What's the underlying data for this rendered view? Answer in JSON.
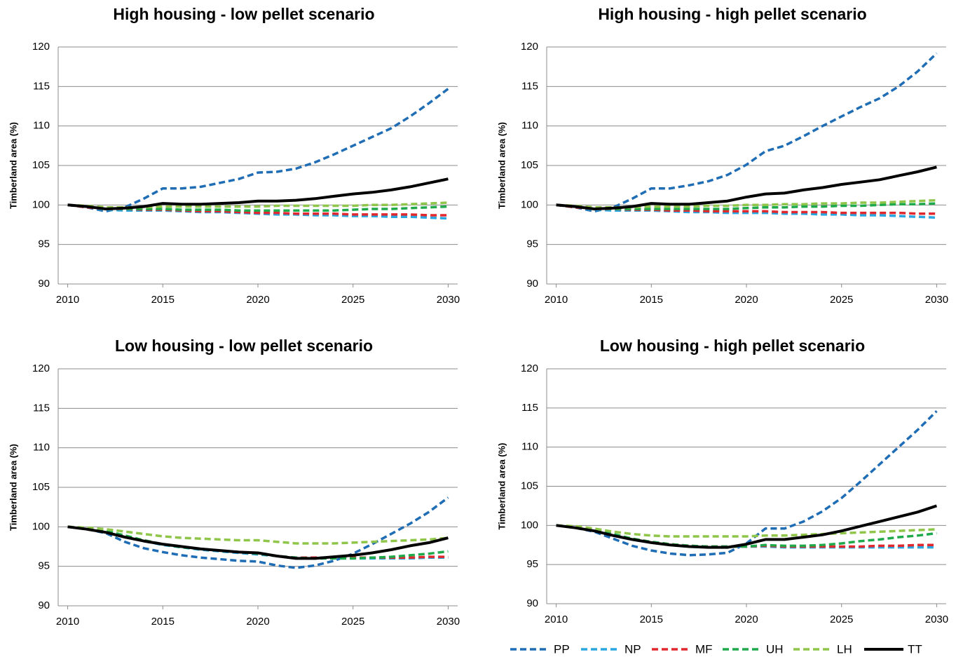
{
  "chart_data": [
    {
      "type": "line",
      "title": "High housing - low pellet scenario",
      "y_label": "Timberland area (%)",
      "x": [
        2010,
        2011,
        2012,
        2013,
        2014,
        2015,
        2016,
        2017,
        2018,
        2019,
        2020,
        2021,
        2022,
        2023,
        2024,
        2025,
        2026,
        2027,
        2028,
        2029,
        2030
      ],
      "xlim": [
        2009.5,
        2030.5
      ],
      "xticks": [
        2010,
        2015,
        2020,
        2025,
        2030
      ],
      "ylim": [
        90,
        120
      ],
      "yticks": [
        90,
        95,
        100,
        105,
        110,
        115,
        120
      ],
      "grid": true,
      "series": [
        {
          "name": "PP",
          "color": "#1f6db5",
          "dashed": true,
          "values": [
            100,
            99.7,
            99.2,
            99.7,
            100.8,
            102.1,
            102.1,
            102.3,
            102.8,
            103.3,
            104.1,
            104.2,
            104.6,
            105.4,
            106.4,
            107.5,
            108.6,
            109.7,
            111.2,
            112.9,
            114.7
          ]
        },
        {
          "name": "NP",
          "color": "#2aa7e0",
          "dashed": true,
          "values": [
            100,
            99.7,
            99.4,
            99.3,
            99.3,
            99.3,
            99.2,
            99.1,
            99.1,
            99.0,
            98.9,
            98.8,
            98.8,
            98.7,
            98.7,
            98.6,
            98.6,
            98.5,
            98.5,
            98.4,
            98.3
          ]
        },
        {
          "name": "MF",
          "color": "#e0282e",
          "dashed": true,
          "values": [
            100,
            99.7,
            99.5,
            99.5,
            99.4,
            99.4,
            99.3,
            99.2,
            99.2,
            99.1,
            99.0,
            99.0,
            98.9,
            98.9,
            98.9,
            98.8,
            98.8,
            98.8,
            98.8,
            98.7,
            98.7
          ]
        },
        {
          "name": "UH",
          "color": "#1ea94b",
          "dashed": true,
          "values": [
            100,
            99.8,
            99.6,
            99.5,
            99.5,
            99.5,
            99.4,
            99.4,
            99.4,
            99.3,
            99.3,
            99.3,
            99.3,
            99.3,
            99.3,
            99.4,
            99.5,
            99.5,
            99.6,
            99.7,
            99.8
          ]
        },
        {
          "name": "LH",
          "color": "#8fc64a",
          "dashed": true,
          "values": [
            100,
            99.9,
            99.7,
            99.7,
            99.7,
            99.8,
            99.8,
            99.8,
            99.8,
            99.8,
            99.8,
            99.9,
            99.9,
            99.9,
            99.9,
            99.9,
            100.0,
            100.0,
            100.1,
            100.2,
            100.3
          ]
        },
        {
          "name": "TT",
          "color": "#000000",
          "dashed": false,
          "values": [
            100,
            99.8,
            99.5,
            99.6,
            99.8,
            100.2,
            100.1,
            100.1,
            100.2,
            100.3,
            100.5,
            100.5,
            100.6,
            100.8,
            101.1,
            101.4,
            101.6,
            101.9,
            102.3,
            102.8,
            103.3
          ]
        }
      ]
    },
    {
      "type": "line",
      "title": "High housing - high pellet scenario",
      "y_label": "Timberland area (%)",
      "x": [
        2010,
        2011,
        2012,
        2013,
        2014,
        2015,
        2016,
        2017,
        2018,
        2019,
        2020,
        2021,
        2022,
        2023,
        2024,
        2025,
        2026,
        2027,
        2028,
        2029,
        2030
      ],
      "xlim": [
        2009.5,
        2030.5
      ],
      "xticks": [
        2010,
        2015,
        2020,
        2025,
        2030
      ],
      "ylim": [
        90,
        120
      ],
      "yticks": [
        90,
        95,
        100,
        105,
        110,
        115,
        120
      ],
      "grid": true,
      "series": [
        {
          "name": "PP",
          "color": "#1f6db5",
          "dashed": true,
          "values": [
            100,
            99.7,
            99.2,
            99.7,
            100.8,
            102.1,
            102.1,
            102.5,
            103.0,
            103.8,
            105.1,
            106.8,
            107.5,
            108.7,
            110.0,
            111.2,
            112.4,
            113.5,
            115.0,
            116.9,
            119.2
          ]
        },
        {
          "name": "NP",
          "color": "#2aa7e0",
          "dashed": true,
          "values": [
            100,
            99.7,
            99.4,
            99.3,
            99.3,
            99.3,
            99.2,
            99.1,
            99.1,
            99.0,
            99.0,
            99.0,
            98.9,
            98.9,
            98.8,
            98.8,
            98.7,
            98.7,
            98.6,
            98.5,
            98.4
          ]
        },
        {
          "name": "MF",
          "color": "#e0282e",
          "dashed": true,
          "values": [
            100,
            99.7,
            99.5,
            99.5,
            99.4,
            99.4,
            99.3,
            99.3,
            99.2,
            99.2,
            99.2,
            99.2,
            99.1,
            99.1,
            99.1,
            99.0,
            99.0,
            99.0,
            99.0,
            98.9,
            98.9
          ]
        },
        {
          "name": "UH",
          "color": "#1ea94b",
          "dashed": true,
          "values": [
            100,
            99.8,
            99.6,
            99.5,
            99.5,
            99.5,
            99.5,
            99.5,
            99.5,
            99.5,
            99.6,
            99.7,
            99.7,
            99.8,
            99.8,
            99.9,
            99.9,
            100.0,
            100.1,
            100.1,
            100.2
          ]
        },
        {
          "name": "LH",
          "color": "#8fc64a",
          "dashed": true,
          "values": [
            100,
            99.9,
            99.7,
            99.7,
            99.7,
            99.8,
            99.8,
            99.8,
            99.9,
            99.9,
            100.0,
            100.0,
            100.1,
            100.1,
            100.2,
            100.2,
            100.3,
            100.3,
            100.4,
            100.5,
            100.6
          ]
        },
        {
          "name": "TT",
          "color": "#000000",
          "dashed": false,
          "values": [
            100,
            99.8,
            99.5,
            99.6,
            99.8,
            100.2,
            100.1,
            100.1,
            100.3,
            100.5,
            101.0,
            101.4,
            101.5,
            101.9,
            102.2,
            102.6,
            102.9,
            103.2,
            103.7,
            104.2,
            104.8
          ]
        }
      ]
    },
    {
      "type": "line",
      "title": "Low housing - low pellet scenario",
      "y_label": "Timberland area (%)",
      "x": [
        2010,
        2011,
        2012,
        2013,
        2014,
        2015,
        2016,
        2017,
        2018,
        2019,
        2020,
        2021,
        2022,
        2023,
        2024,
        2025,
        2026,
        2027,
        2028,
        2029,
        2030
      ],
      "xlim": [
        2009.5,
        2030.5
      ],
      "xticks": [
        2010,
        2015,
        2020,
        2025,
        2030
      ],
      "ylim": [
        90,
        120
      ],
      "yticks": [
        90,
        95,
        100,
        105,
        110,
        115,
        120
      ],
      "grid": true,
      "series": [
        {
          "name": "PP",
          "color": "#1f6db5",
          "dashed": true,
          "values": [
            100,
            99.7,
            99.2,
            98.1,
            97.3,
            96.8,
            96.4,
            96.1,
            95.9,
            95.7,
            95.6,
            95.1,
            94.8,
            95.1,
            95.7,
            96.6,
            97.8,
            99.1,
            100.4,
            101.9,
            103.7
          ]
        },
        {
          "name": "NP",
          "color": "#2aa7e0",
          "dashed": true,
          "values": [
            100,
            99.7,
            99.4,
            98.8,
            98.2,
            97.7,
            97.4,
            97.1,
            96.9,
            96.7,
            96.5,
            96.3,
            96.1,
            96.0,
            96.0,
            96.0,
            96.0,
            96.0,
            96.0,
            96.1,
            96.1
          ]
        },
        {
          "name": "MF",
          "color": "#e0282e",
          "dashed": true,
          "values": [
            100,
            99.7,
            99.4,
            98.8,
            98.3,
            97.8,
            97.5,
            97.2,
            97.0,
            96.8,
            96.6,
            96.3,
            96.1,
            96.1,
            96.1,
            96.1,
            96.1,
            96.1,
            96.1,
            96.2,
            96.2
          ]
        },
        {
          "name": "UH",
          "color": "#1ea94b",
          "dashed": true,
          "values": [
            100,
            99.8,
            99.5,
            98.9,
            98.3,
            97.8,
            97.4,
            97.2,
            97.0,
            96.8,
            96.6,
            96.3,
            96.1,
            96.0,
            96.0,
            96.0,
            96.1,
            96.2,
            96.4,
            96.6,
            96.9
          ]
        },
        {
          "name": "LH",
          "color": "#8fc64a",
          "dashed": true,
          "values": [
            100,
            99.9,
            99.7,
            99.4,
            99.1,
            98.8,
            98.6,
            98.5,
            98.4,
            98.3,
            98.3,
            98.1,
            97.9,
            97.9,
            97.9,
            98.0,
            98.1,
            98.2,
            98.3,
            98.4,
            98.6
          ]
        },
        {
          "name": "TT",
          "color": "#000000",
          "dashed": false,
          "values": [
            100,
            99.7,
            99.3,
            98.7,
            98.2,
            97.8,
            97.5,
            97.2,
            97.0,
            96.8,
            96.7,
            96.3,
            96.0,
            96.0,
            96.2,
            96.4,
            96.7,
            97.1,
            97.6,
            98.0,
            98.6
          ]
        }
      ]
    },
    {
      "type": "line",
      "title": "Low housing - high pellet scenario",
      "y_label": "Timberland area (%)",
      "x": [
        2010,
        2011,
        2012,
        2013,
        2014,
        2015,
        2016,
        2017,
        2018,
        2019,
        2020,
        2021,
        2022,
        2023,
        2024,
        2025,
        2026,
        2027,
        2028,
        2029,
        2030
      ],
      "xlim": [
        2009.5,
        2030.5
      ],
      "xticks": [
        2010,
        2015,
        2020,
        2025,
        2030
      ],
      "ylim": [
        90,
        120
      ],
      "yticks": [
        90,
        95,
        100,
        105,
        110,
        115,
        120
      ],
      "grid": true,
      "legend": "bottom-right",
      "series": [
        {
          "name": "PP",
          "color": "#1f6db5",
          "dashed": true,
          "values": [
            100,
            99.7,
            99.2,
            98.3,
            97.4,
            96.8,
            96.4,
            96.2,
            96.3,
            96.5,
            97.7,
            99.6,
            99.6,
            100.5,
            101.8,
            103.5,
            105.6,
            107.8,
            110.0,
            112.2,
            114.6
          ]
        },
        {
          "name": "NP",
          "color": "#2aa7e0",
          "dashed": true,
          "values": [
            100,
            99.7,
            99.4,
            98.8,
            98.2,
            97.8,
            97.5,
            97.3,
            97.3,
            97.3,
            97.3,
            97.3,
            97.2,
            97.2,
            97.2,
            97.2,
            97.2,
            97.2,
            97.2,
            97.2,
            97.2
          ]
        },
        {
          "name": "MF",
          "color": "#e0282e",
          "dashed": true,
          "values": [
            100,
            99.7,
            99.4,
            98.8,
            98.3,
            97.9,
            97.6,
            97.4,
            97.3,
            97.3,
            97.3,
            97.4,
            97.3,
            97.3,
            97.3,
            97.3,
            97.3,
            97.4,
            97.4,
            97.5,
            97.5
          ]
        },
        {
          "name": "UH",
          "color": "#1ea94b",
          "dashed": true,
          "values": [
            100,
            99.8,
            99.5,
            98.9,
            98.3,
            97.9,
            97.6,
            97.4,
            97.3,
            97.3,
            97.3,
            97.5,
            97.4,
            97.4,
            97.5,
            97.7,
            98.0,
            98.2,
            98.5,
            98.7,
            99.0
          ]
        },
        {
          "name": "LH",
          "color": "#8fc64a",
          "dashed": true,
          "values": [
            100,
            99.9,
            99.6,
            99.2,
            98.9,
            98.7,
            98.6,
            98.6,
            98.6,
            98.6,
            98.6,
            98.7,
            98.7,
            98.8,
            98.9,
            99.0,
            99.1,
            99.2,
            99.3,
            99.4,
            99.5
          ]
        },
        {
          "name": "TT",
          "color": "#000000",
          "dashed": false,
          "values": [
            100,
            99.7,
            99.3,
            98.7,
            98.2,
            97.8,
            97.5,
            97.3,
            97.2,
            97.2,
            97.6,
            98.2,
            98.2,
            98.5,
            98.8,
            99.3,
            99.9,
            100.5,
            101.1,
            101.7,
            102.5
          ]
        }
      ]
    }
  ]
}
